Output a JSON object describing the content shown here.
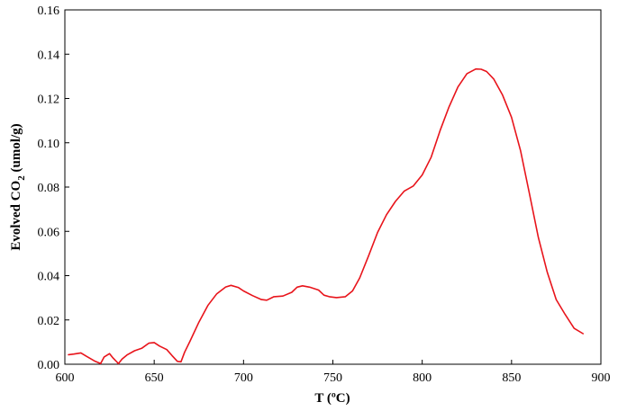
{
  "chart_data": {
    "type": "line",
    "title": "",
    "xlabel": "T (ºC)",
    "ylabel": {
      "prefix": "Evolved CO",
      "subscript": "2",
      "suffix": " (umol/g)"
    },
    "xlim": [
      600,
      900
    ],
    "ylim": [
      0,
      0.16
    ],
    "x_ticks": [
      600,
      650,
      700,
      750,
      800,
      850,
      900
    ],
    "y_ticks": [
      0,
      0.02,
      0.04,
      0.06,
      0.08,
      0.1,
      0.12,
      0.14,
      0.16
    ],
    "y_tick_labels": [
      "0.00",
      "0.02",
      "0.04",
      "0.06",
      "0.08",
      "0.10",
      "0.12",
      "0.14",
      "0.16"
    ],
    "grid": false,
    "legend": "none",
    "series": [
      {
        "color": "#e8141b",
        "x": [
          602,
          605,
          609,
          612,
          617,
          620,
          622,
          625,
          627,
          630,
          632,
          635,
          639,
          643,
          647,
          650,
          653,
          657,
          660,
          663,
          665,
          667,
          670,
          675,
          680,
          685,
          690,
          693,
          697,
          700,
          705,
          710,
          713,
          717,
          722,
          727,
          730,
          733,
          737,
          742,
          745,
          748,
          752,
          757,
          761,
          765,
          770,
          775,
          780,
          785,
          790,
          795,
          800,
          805,
          810,
          815,
          820,
          825,
          830,
          833,
          836,
          840,
          845,
          850,
          855,
          860,
          865,
          870,
          875,
          880,
          885,
          890
        ],
        "y": [
          0.0043,
          0.0046,
          0.0051,
          0.0036,
          0.0013,
          0.0003,
          0.0033,
          0.0048,
          0.0028,
          0.0003,
          0.0023,
          0.0043,
          0.0061,
          0.0072,
          0.0095,
          0.0098,
          0.0082,
          0.0066,
          0.0039,
          0.0013,
          0.0011,
          0.0054,
          0.0103,
          0.019,
          0.0265,
          0.0318,
          0.0349,
          0.0356,
          0.0347,
          0.0331,
          0.031,
          0.0292,
          0.0289,
          0.0305,
          0.0308,
          0.0325,
          0.0348,
          0.0354,
          0.0348,
          0.0335,
          0.0312,
          0.0305,
          0.0301,
          0.0305,
          0.0331,
          0.039,
          0.049,
          0.0595,
          0.0675,
          0.0735,
          0.0782,
          0.0805,
          0.0855,
          0.0935,
          0.1055,
          0.1162,
          0.1252,
          0.1312,
          0.1333,
          0.1332,
          0.1322,
          0.1288,
          0.1215,
          0.1115,
          0.0965,
          0.077,
          0.0572,
          0.0415,
          0.0292,
          0.0225,
          0.0162,
          0.0138
        ]
      }
    ]
  }
}
